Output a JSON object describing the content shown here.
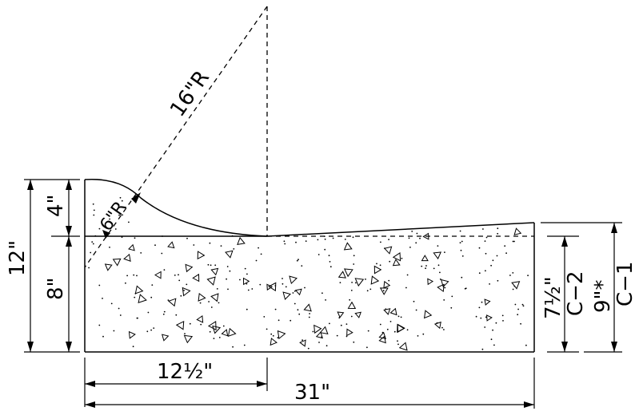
{
  "labels": {
    "radius_large": "16\"R",
    "radius_small": "6\"R",
    "total_height": "12\"",
    "top_height": "4\"",
    "bottom_height": "8\"",
    "half_width": "12½\"",
    "total_width": "31\"",
    "c2_height": "7½\"",
    "c2_name": "C−2",
    "c1_height": "9\"*",
    "c1_name": "C−1"
  },
  "colors": {
    "line": "#000000",
    "background": "#ffffff"
  }
}
